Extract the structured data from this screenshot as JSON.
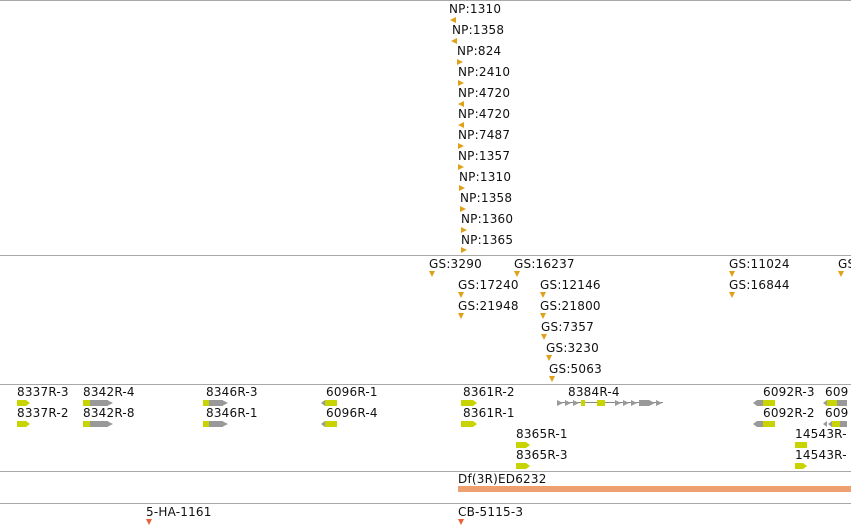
{
  "tracks": {
    "np": {
      "labels": [
        "NP:1310",
        "NP:1358",
        "NP:824",
        "NP:2410",
        "NP:4720",
        "NP:4720",
        "NP:7487",
        "NP:1357",
        "NP:1310",
        "NP:1358",
        "NP:1360",
        "NP:1365"
      ]
    },
    "gs": {
      "labels": [
        "GS:3290",
        "GS:16237",
        "GS:11024",
        "GS:",
        "GS:17240",
        "GS:12146",
        "GS:16844",
        "GS:21948",
        "GS:21800",
        "GS:7357",
        "GS:3230",
        "GS:5063"
      ]
    },
    "genes": {
      "labels": [
        "8337R-3",
        "8342R-4",
        "8346R-3",
        "6096R-1",
        "8361R-2",
        "8384R-4",
        "6092R-3",
        "609",
        "8337R-2",
        "8342R-8",
        "8346R-1",
        "6096R-4",
        "8361R-1",
        "6092R-2",
        "609",
        "14543R-",
        "8365R-1",
        "8365R-3",
        "14543R-"
      ]
    },
    "deficiency": {
      "label": "Df(3R)ED6232"
    },
    "insertions": {
      "labels": [
        "5-HA-1161",
        "CB-5115-3"
      ]
    }
  },
  "colors": {
    "marker": "#e0a018",
    "gene": "#c8d400",
    "gene_gray": "#999999",
    "df": "#eea070",
    "insertion": "#e8603c"
  }
}
